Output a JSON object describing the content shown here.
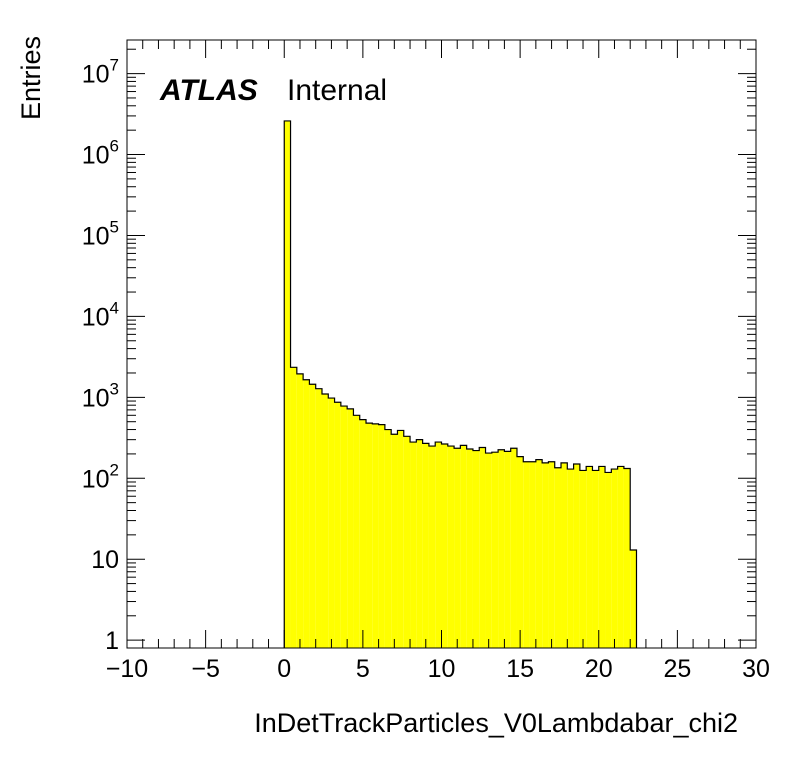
{
  "chart_data": {
    "type": "histogram",
    "xlabel": "InDetTrackParticles_V0Lambdabar_chi2",
    "ylabel": "Entries",
    "xlim": [
      -10,
      30
    ],
    "ylim": [
      0.8,
      26000000
    ],
    "y_scale": "log",
    "fill_color": "#ffff00",
    "line_color": "#000000",
    "labels": {
      "atlas": "ATLAS",
      "status": "Internal"
    },
    "x_ticks": [
      {
        "value": -10,
        "label": "−10"
      },
      {
        "value": -5,
        "label": "−5"
      },
      {
        "value": 0,
        "label": "0"
      },
      {
        "value": 5,
        "label": "5"
      },
      {
        "value": 10,
        "label": "10"
      },
      {
        "value": 15,
        "label": "15"
      },
      {
        "value": 20,
        "label": "20"
      },
      {
        "value": 25,
        "label": "25"
      },
      {
        "value": 30,
        "label": "30"
      }
    ],
    "y_ticks": [
      {
        "value": 1,
        "base": "1",
        "exp": ""
      },
      {
        "value": 10,
        "base": "10",
        "exp": ""
      },
      {
        "value": 100,
        "base": "10",
        "exp": "2"
      },
      {
        "value": 1000,
        "base": "10",
        "exp": "3"
      },
      {
        "value": 10000,
        "base": "10",
        "exp": "4"
      },
      {
        "value": 100000,
        "base": "10",
        "exp": "5"
      },
      {
        "value": 1000000,
        "base": "10",
        "exp": "6"
      },
      {
        "value": 10000000,
        "base": "10",
        "exp": "7"
      }
    ],
    "bin_width": 0.4,
    "bin_start": 0,
    "values": [
      2600000,
      2350,
      1950,
      1650,
      1450,
      1280,
      1100,
      980,
      870,
      780,
      720,
      600,
      530,
      480,
      470,
      460,
      400,
      350,
      390,
      330,
      280,
      300,
      270,
      250,
      280,
      265,
      250,
      235,
      255,
      230,
      220,
      240,
      205,
      210,
      225,
      215,
      235,
      185,
      160,
      160,
      170,
      155,
      160,
      135,
      155,
      130,
      150,
      125,
      140,
      125,
      140,
      118,
      130,
      140,
      132,
      13
    ]
  }
}
